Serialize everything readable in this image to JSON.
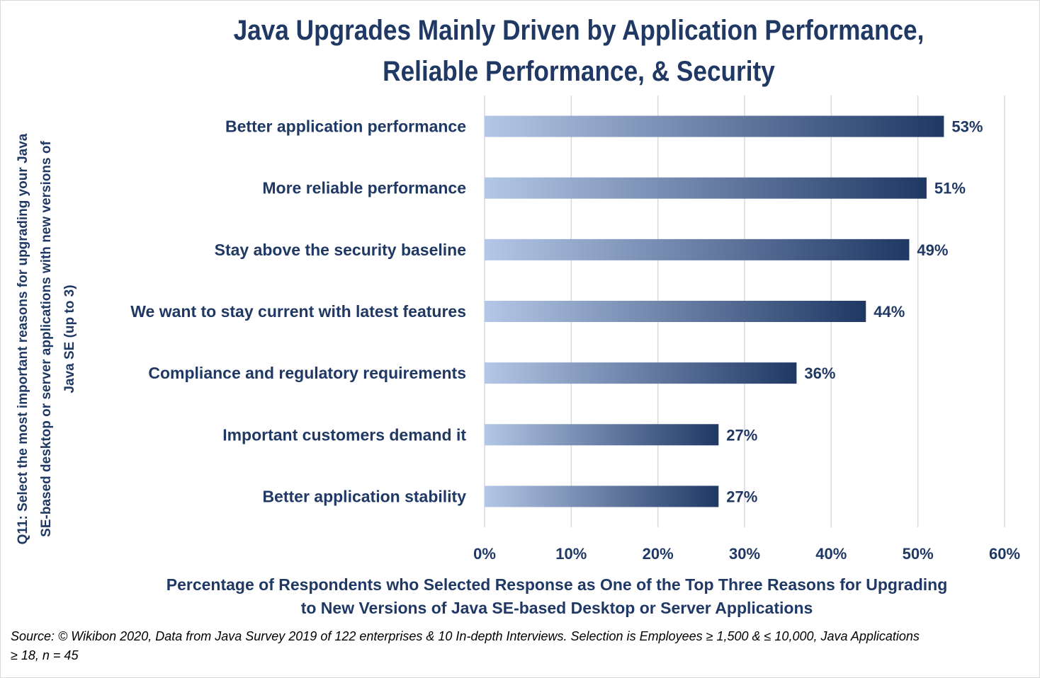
{
  "title": {
    "line1": "Java Upgrades Mainly Driven by Application Performance,",
    "line2": "Reliable Performance, & Security"
  },
  "ylabel_lines": [
    "Q11: Select the most important reasons for upgrading your Java",
    "SE-based desktop or server applications with new versions of",
    "Java SE (up to 3)"
  ],
  "xlabel_lines": [
    "Percentage of Respondents who Selected Response as One of the Top Three Reasons for Upgrading",
    "to New Versions of Java SE-based Desktop or Server Applications"
  ],
  "source_lines": [
    "Source: © Wikibon 2020, Data from Java Survey 2019 of 122 enterprises & 10 In-depth Interviews. Selection is Employees  ≥ 1,500 & ≤ 10,000, Java Applications",
    "≥ 18, n = 45"
  ],
  "chart_data": {
    "type": "bar",
    "orientation": "horizontal",
    "categories": [
      "Better application performance",
      "More reliable performance",
      "Stay above the security baseline",
      "We want to stay current with latest features",
      "Compliance and regulatory requirements",
      "Important customers demand it",
      "Better application stability"
    ],
    "values": [
      53,
      51,
      49,
      44,
      36,
      27,
      27
    ],
    "data_labels": [
      "53%",
      "51%",
      "49%",
      "44%",
      "36%",
      "27%",
      "27%"
    ],
    "xlim": [
      0,
      60
    ],
    "xticks": [
      0,
      10,
      20,
      30,
      40,
      50,
      60
    ],
    "xtick_labels": [
      "0%",
      "10%",
      "20%",
      "30%",
      "40%",
      "50%",
      "60%"
    ],
    "grid": "vertical",
    "legend": "none"
  },
  "colors": {
    "text": "#1f3864",
    "bar_start": "#b4c7e7",
    "bar_end": "#1f3864",
    "grid": "#d9d9d9"
  }
}
